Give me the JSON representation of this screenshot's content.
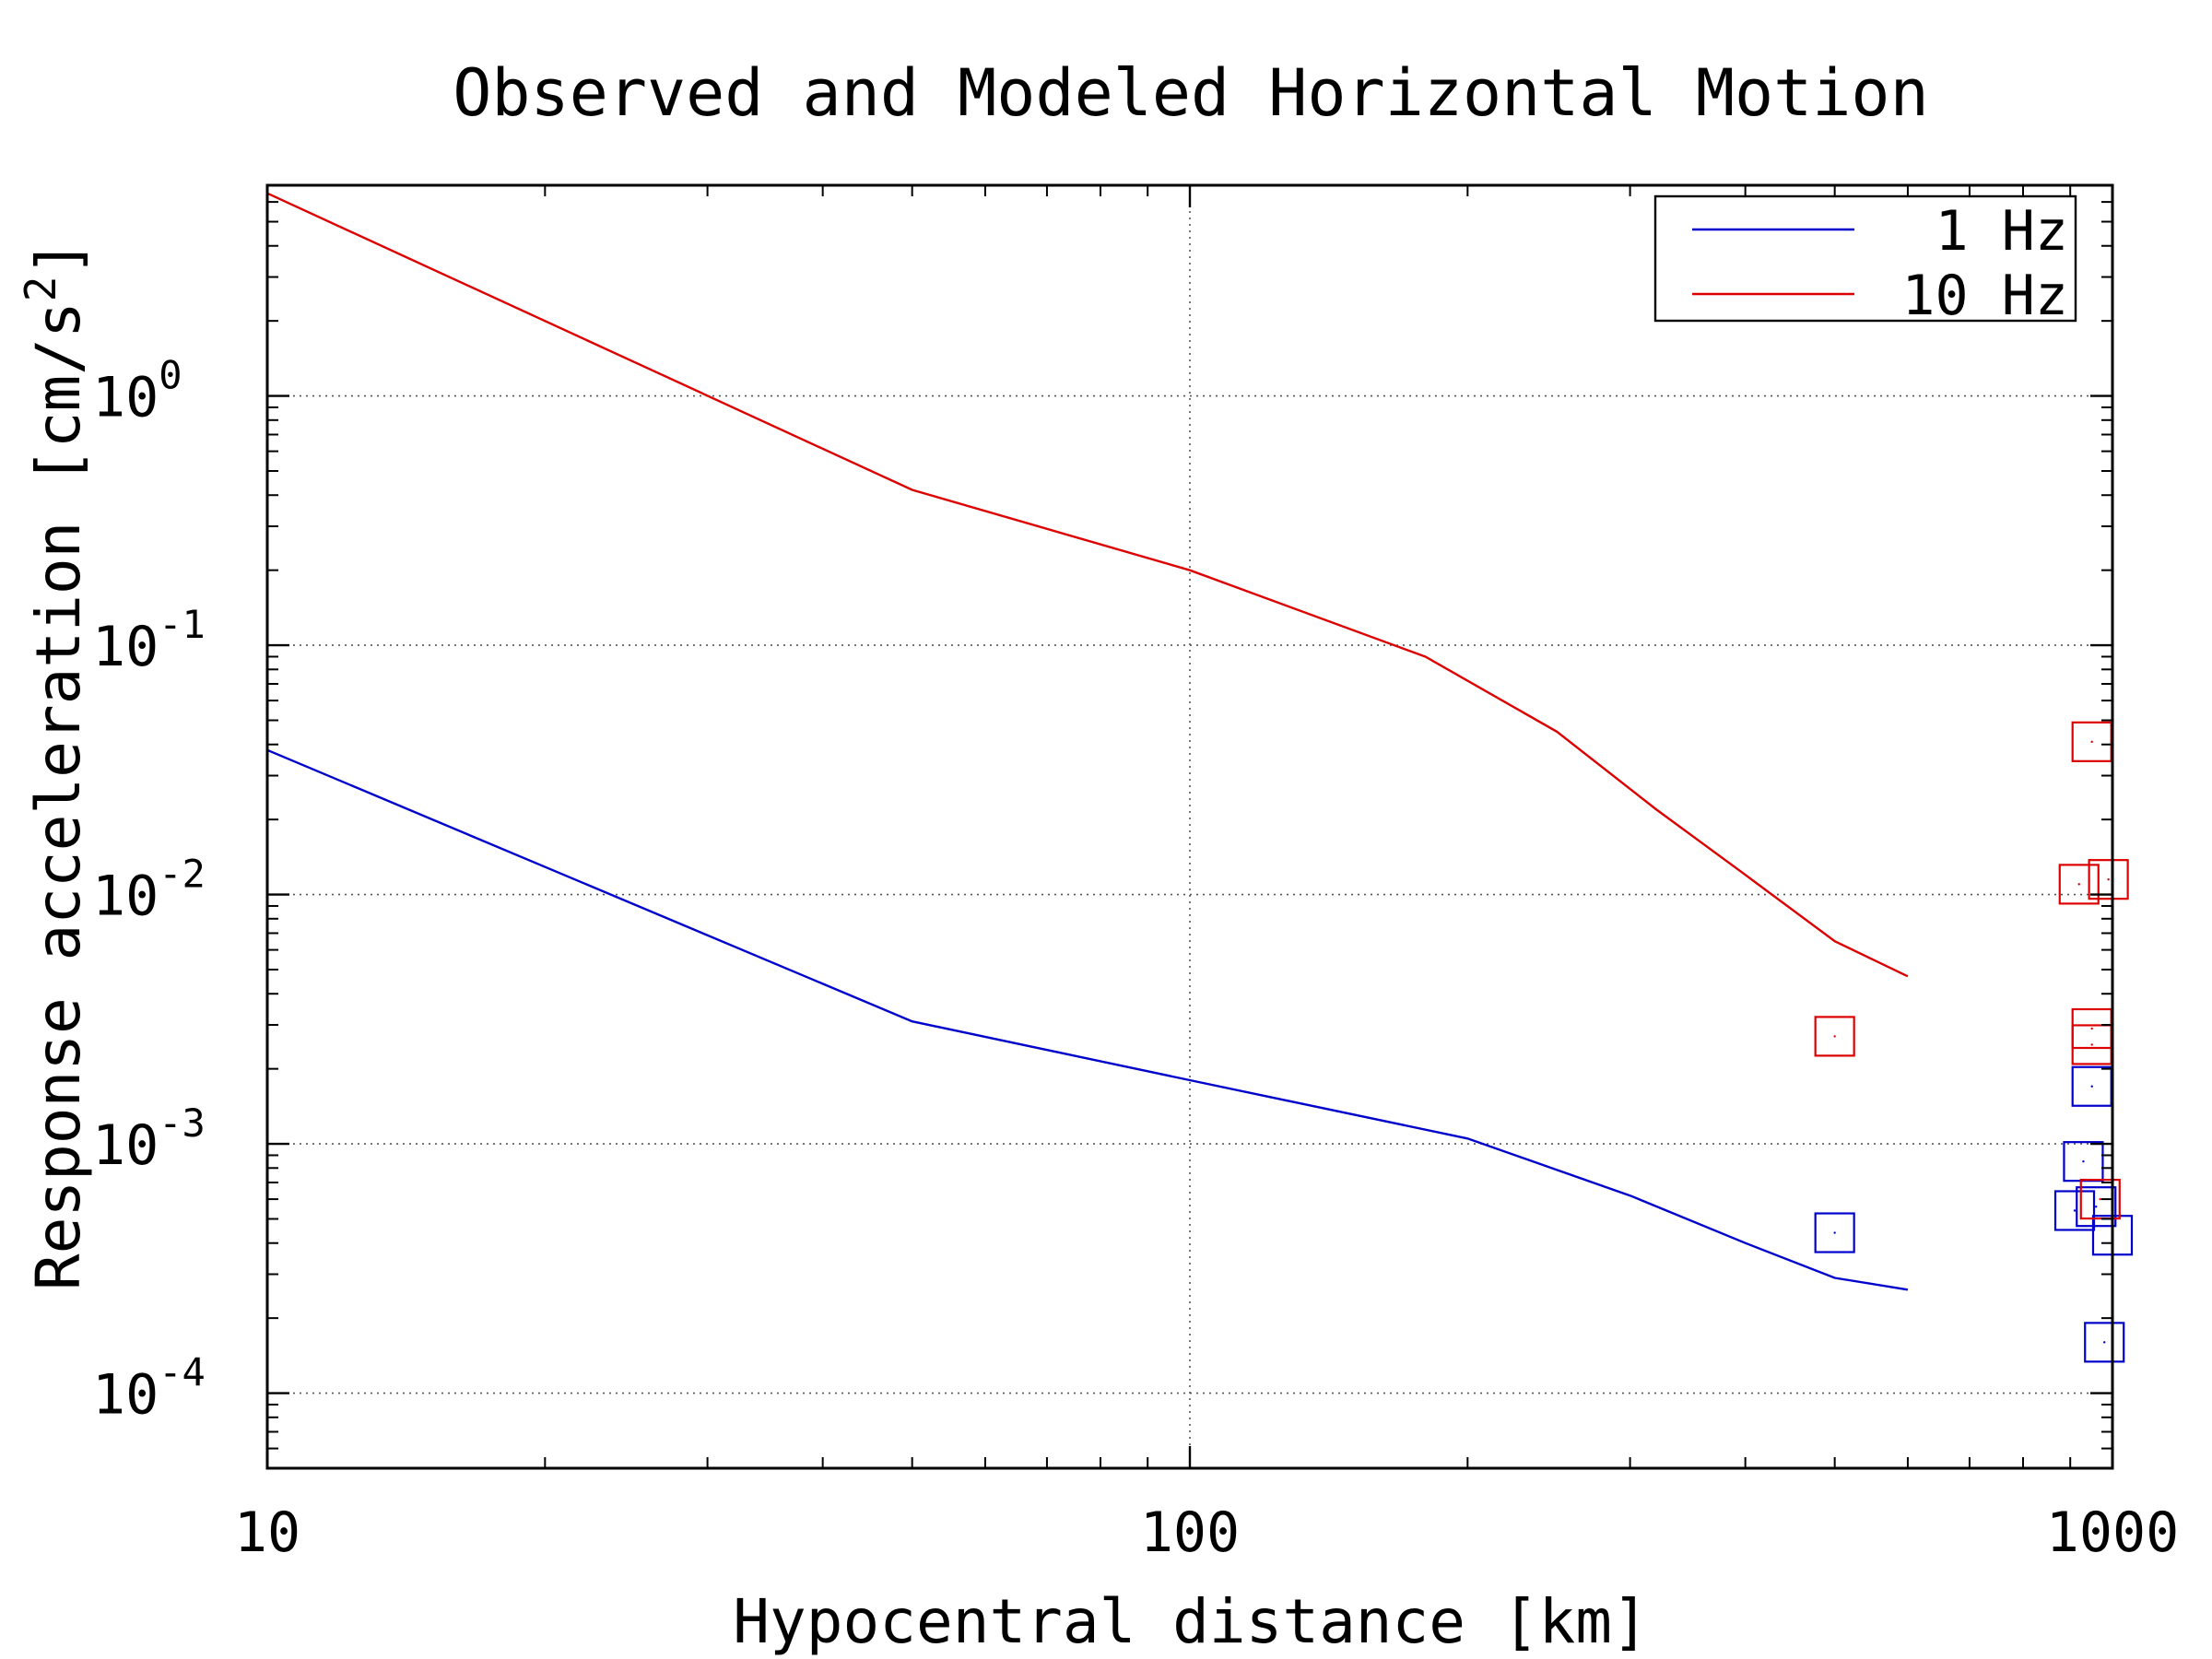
{
  "chart_data": {
    "type": "scatter",
    "title": "Observed and Modeled Horizontal Motion",
    "xlabel": "Hypocentral distance [km]",
    "ylabel": "Response acceleration [cm/s",
    "ylabel_superscript": "2",
    "ylabel_suffix": "]",
    "x_scale": "log",
    "y_scale": "log",
    "xlim": [
      10,
      1000
    ],
    "ylim": [
      5e-05,
      7
    ],
    "x_ticks": [
      {
        "value": 10,
        "label": "10"
      },
      {
        "value": 100,
        "label": "100"
      },
      {
        "value": 1000,
        "label": "1000"
      }
    ],
    "y_ticks": [
      {
        "value": 0.0001,
        "base": "10",
        "exp": "-4"
      },
      {
        "value": 0.001,
        "base": "10",
        "exp": "-3"
      },
      {
        "value": 0.01,
        "base": "10",
        "exp": "-2"
      },
      {
        "value": 0.1,
        "base": "10",
        "exp": "-1"
      },
      {
        "value": 1,
        "base": "10",
        "exp": "0"
      }
    ],
    "grid": "dotted",
    "legend_position": "top-right",
    "series": [
      {
        "name": "1 Hz",
        "color": "#0000cc",
        "model": [
          [
            10,
            0.038
          ],
          [
            50,
            0.0031
          ],
          [
            100,
            0.0018
          ],
          [
            200,
            0.00105
          ],
          [
            300,
            0.00062
          ],
          [
            400,
            0.0004
          ],
          [
            500,
            0.00029
          ],
          [
            600,
            0.00026
          ]
        ],
        "observed": [
          [
            500,
            0.00044
          ],
          [
            950,
            0.0017
          ],
          [
            930,
            0.00085
          ],
          [
            910,
            0.00054
          ],
          [
            960,
            0.00056
          ],
          [
            1000,
            0.00043
          ],
          [
            980,
            0.00016
          ]
        ]
      },
      {
        "name": "10 Hz",
        "color": "#dd0000",
        "model": [
          [
            10,
            6.5
          ],
          [
            50,
            0.42
          ],
          [
            100,
            0.2
          ],
          [
            180,
            0.09
          ],
          [
            250,
            0.045
          ],
          [
            320,
            0.022
          ],
          [
            400,
            0.012
          ],
          [
            500,
            0.0065
          ],
          [
            600,
            0.0047
          ]
        ],
        "observed": [
          [
            500,
            0.0027
          ],
          [
            950,
            0.041
          ],
          [
            920,
            0.011
          ],
          [
            990,
            0.0115
          ],
          [
            950,
            0.0029
          ],
          [
            950,
            0.0025
          ],
          [
            970,
            0.0006
          ]
        ]
      }
    ]
  }
}
